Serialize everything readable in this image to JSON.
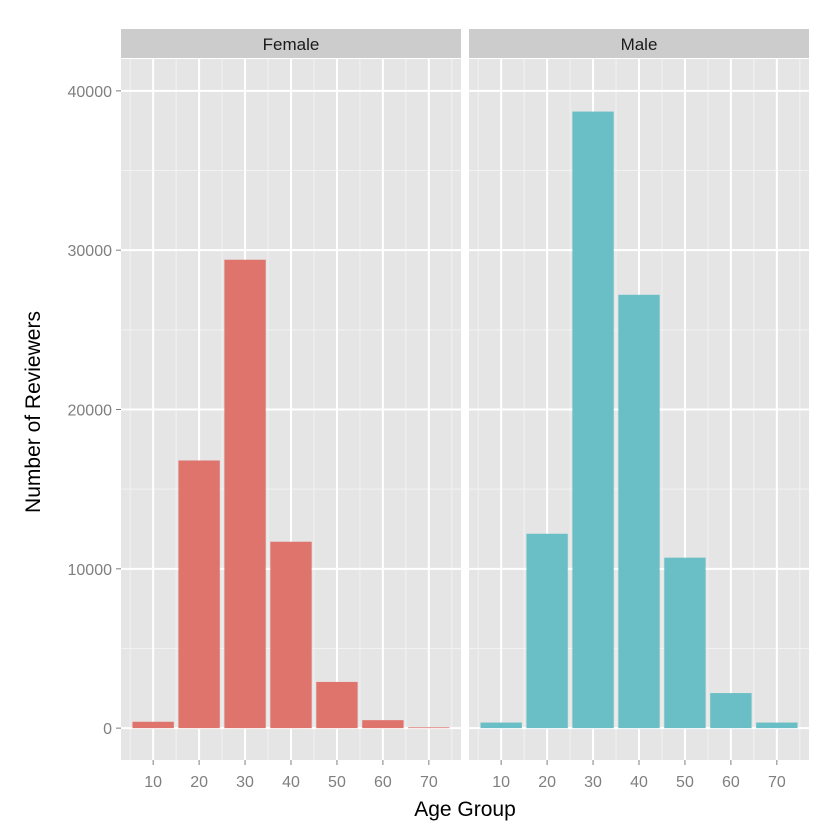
{
  "chart_data": {
    "type": "bar",
    "xlabel": "Age Group",
    "ylabel": "Number of Reviewers",
    "ylim": [
      -2000,
      42000
    ],
    "xlim": [
      3,
      77
    ],
    "x_ticks": [
      "10",
      "20",
      "30",
      "40",
      "50",
      "60",
      "70"
    ],
    "y_ticks": [
      "0",
      "10000",
      "20000",
      "30000",
      "40000"
    ],
    "grid": true,
    "panels": [
      {
        "name": "Female",
        "color": "#DE746C",
        "x": [
          10,
          20,
          30,
          40,
          50,
          60,
          70
        ],
        "values": [
          400,
          16800,
          29400,
          11700,
          2900,
          500,
          50
        ]
      },
      {
        "name": "Male",
        "color": "#6ABFC6",
        "x": [
          10,
          20,
          30,
          40,
          50,
          60,
          70
        ],
        "values": [
          350,
          12200,
          38700,
          27200,
          10700,
          2200,
          350
        ]
      }
    ]
  }
}
